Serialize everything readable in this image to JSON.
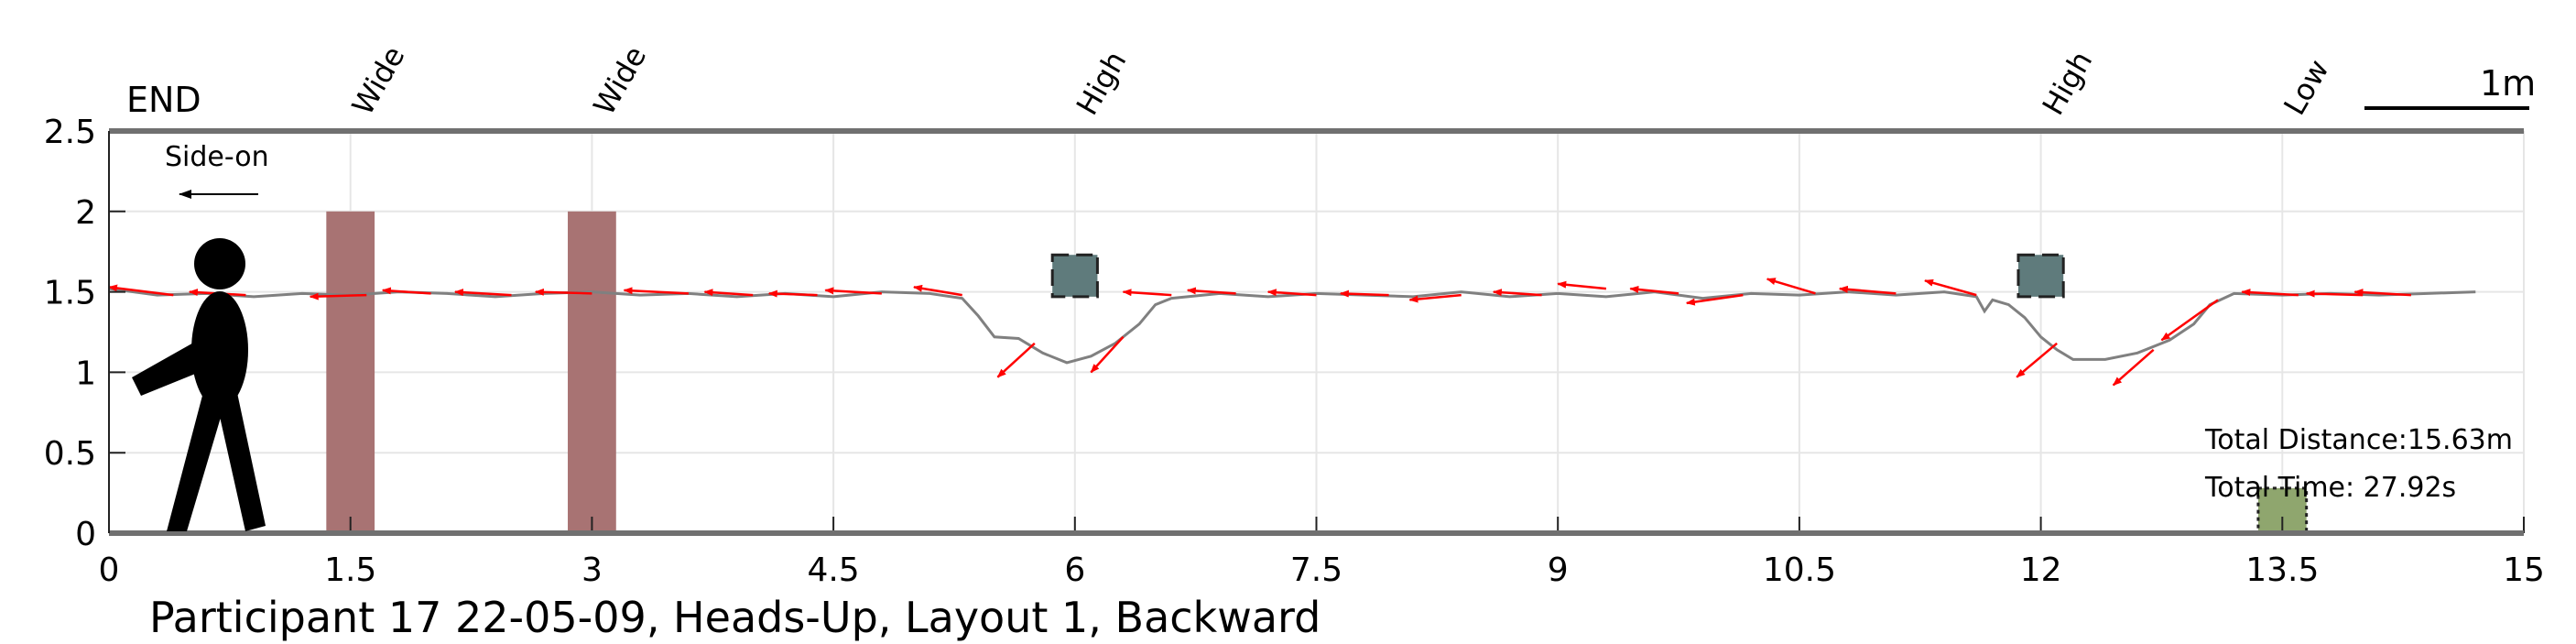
{
  "chart_data": {
    "type": "line",
    "title": "Participant 17 22-05-09, Heads-Up, Layout 1, Backward",
    "xlabel": "",
    "ylabel": "",
    "xlim": [
      0,
      15
    ],
    "ylim": [
      0,
      2.5
    ],
    "x_ticks": [
      "0",
      "1.5",
      "3",
      "4.5",
      "6",
      "7.5",
      "9",
      "10.5",
      "12",
      "13.5",
      "15"
    ],
    "y_ticks": [
      "0",
      "0.5",
      "1",
      "1.5",
      "2",
      "2.5"
    ],
    "grid": true,
    "end_label": "END",
    "direction_label": "Side-on",
    "scale_label": "1m",
    "scale_length_m": 1,
    "obstacle_labels": [
      {
        "label": "Wide",
        "x": 1.5
      },
      {
        "label": "Wide",
        "x": 3.0
      },
      {
        "label": "High",
        "x": 6.0
      },
      {
        "label": "High",
        "x": 12.0
      },
      {
        "label": "Low",
        "x": 13.5
      }
    ],
    "obstacles": [
      {
        "kind": "wide",
        "x0": 1.35,
        "x1": 1.65,
        "y0": 0,
        "y1": 2.0,
        "color": "#a87373"
      },
      {
        "kind": "wide",
        "x0": 2.85,
        "x1": 3.15,
        "y0": 0,
        "y1": 2.0,
        "color": "#a87373"
      },
      {
        "kind": "high",
        "x0": 5.86,
        "x1": 6.14,
        "y0": 1.47,
        "y1": 1.73,
        "color": "#5f7b7c"
      },
      {
        "kind": "high",
        "x0": 11.86,
        "x1": 12.14,
        "y0": 1.47,
        "y1": 1.73,
        "color": "#5f7b7c"
      },
      {
        "kind": "low",
        "x0": 13.35,
        "x1": 13.65,
        "y0": 0,
        "y1": 0.28,
        "color": "#8fa66e"
      }
    ],
    "series": [
      {
        "color": "#808080",
        "x": [
          0.0,
          0.3,
          0.6,
          0.9,
          1.2,
          1.5,
          1.8,
          2.1,
          2.4,
          2.7,
          3.0,
          3.3,
          3.6,
          3.9,
          4.2,
          4.5,
          4.8,
          5.1,
          5.3,
          5.4,
          5.5,
          5.65,
          5.8,
          5.95,
          6.1,
          6.25,
          6.4,
          6.5,
          6.6,
          6.9,
          7.2,
          7.5,
          7.8,
          8.1,
          8.4,
          8.7,
          9.0,
          9.3,
          9.6,
          9.9,
          10.2,
          10.5,
          10.8,
          11.1,
          11.4,
          11.6,
          11.65,
          11.7,
          11.8,
          11.9,
          12.0,
          12.1,
          12.2,
          12.4,
          12.6,
          12.8,
          12.95,
          13.05,
          13.2,
          13.5,
          13.8,
          14.1,
          14.4,
          14.7
        ],
        "y": [
          1.52,
          1.48,
          1.49,
          1.47,
          1.49,
          1.48,
          1.5,
          1.49,
          1.47,
          1.49,
          1.5,
          1.48,
          1.49,
          1.47,
          1.49,
          1.47,
          1.5,
          1.49,
          1.46,
          1.35,
          1.22,
          1.21,
          1.12,
          1.06,
          1.1,
          1.18,
          1.3,
          1.42,
          1.46,
          1.49,
          1.47,
          1.49,
          1.48,
          1.47,
          1.5,
          1.47,
          1.49,
          1.47,
          1.5,
          1.46,
          1.49,
          1.48,
          1.5,
          1.48,
          1.5,
          1.47,
          1.38,
          1.45,
          1.42,
          1.34,
          1.22,
          1.14,
          1.08,
          1.08,
          1.12,
          1.2,
          1.3,
          1.42,
          1.49,
          1.48,
          1.49,
          1.48,
          1.49,
          1.5
        ]
      }
    ],
    "arrows": [
      [
        0.4,
        1.48,
        0.0,
        1.53
      ],
      [
        0.85,
        1.48,
        0.5,
        1.5
      ],
      [
        1.6,
        1.48,
        1.25,
        1.47
      ],
      [
        2.0,
        1.49,
        1.7,
        1.51
      ],
      [
        2.5,
        1.48,
        2.15,
        1.5
      ],
      [
        3.0,
        1.49,
        2.65,
        1.5
      ],
      [
        3.6,
        1.49,
        3.2,
        1.51
      ],
      [
        4.0,
        1.48,
        3.7,
        1.5
      ],
      [
        4.4,
        1.48,
        4.1,
        1.49
      ],
      [
        4.8,
        1.49,
        4.45,
        1.51
      ],
      [
        5.3,
        1.48,
        5.0,
        1.53
      ],
      [
        5.75,
        1.18,
        5.52,
        0.97
      ],
      [
        6.3,
        1.22,
        6.1,
        1.0
      ],
      [
        6.6,
        1.48,
        6.3,
        1.5
      ],
      [
        7.0,
        1.49,
        6.7,
        1.51
      ],
      [
        7.5,
        1.48,
        7.2,
        1.5
      ],
      [
        7.95,
        1.48,
        7.65,
        1.49
      ],
      [
        8.4,
        1.48,
        8.08,
        1.45
      ],
      [
        8.9,
        1.48,
        8.6,
        1.5
      ],
      [
        9.3,
        1.52,
        9.0,
        1.55
      ],
      [
        9.75,
        1.49,
        9.45,
        1.52
      ],
      [
        10.15,
        1.48,
        9.8,
        1.43
      ],
      [
        10.6,
        1.49,
        10.3,
        1.58
      ],
      [
        11.1,
        1.49,
        10.75,
        1.52
      ],
      [
        11.6,
        1.48,
        11.28,
        1.57
      ],
      [
        12.1,
        1.18,
        11.85,
        0.97
      ],
      [
        12.7,
        1.14,
        12.45,
        0.92
      ],
      [
        13.1,
        1.45,
        12.75,
        1.2
      ],
      [
        13.6,
        1.48,
        13.25,
        1.5
      ],
      [
        14.0,
        1.48,
        13.65,
        1.49
      ],
      [
        14.3,
        1.48,
        13.95,
        1.5
      ]
    ],
    "totals": [
      {
        "label": "Total Distance:15.63m"
      },
      {
        "label": "Total Time: 27.92s"
      }
    ]
  }
}
